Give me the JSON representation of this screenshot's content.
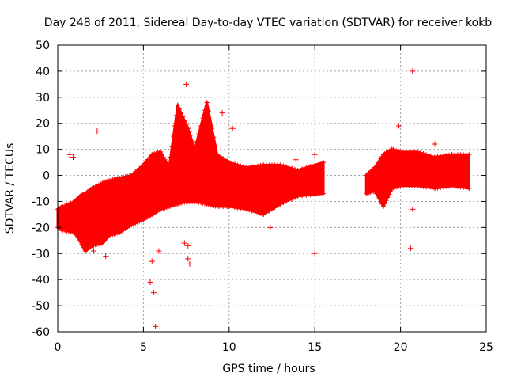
{
  "chart_data": {
    "type": "scatter",
    "title": "Day 248 of 2011, Sidereal Day-to-day VTEC variation (SDTVAR) for receiver kokb",
    "xlabel": "GPS time / hours",
    "ylabel": "SDTVAR / TECUs",
    "xlim": [
      0,
      25
    ],
    "ylim": [
      -60,
      50
    ],
    "x_ticks": [
      0,
      5,
      10,
      15,
      20,
      25
    ],
    "y_ticks": [
      -60,
      -50,
      -40,
      -30,
      -20,
      -10,
      0,
      10,
      20,
      30,
      40,
      50
    ],
    "grid": true,
    "marker": "+",
    "series_color": "#ff0000",
    "bands": [
      {
        "x": [
          0.0,
          0.3
        ],
        "lo": [
          -20,
          -21
        ],
        "hi": [
          -13,
          -12
        ]
      },
      {
        "x": [
          0.3,
          1.0
        ],
        "lo": [
          -21,
          -22
        ],
        "hi": [
          -12,
          -10
        ]
      },
      {
        "x": [
          1.0,
          1.3
        ],
        "lo": [
          -22,
          -25
        ],
        "hi": [
          -10,
          -8
        ]
      },
      {
        "x": [
          1.3,
          1.6
        ],
        "lo": [
          -25,
          -29
        ],
        "hi": [
          -8,
          -7
        ]
      },
      {
        "x": [
          1.6,
          2.0
        ],
        "lo": [
          -29,
          -27
        ],
        "hi": [
          -7,
          -5
        ]
      },
      {
        "x": [
          2.0,
          2.6
        ],
        "lo": [
          -27,
          -26
        ],
        "hi": [
          -5,
          -3
        ]
      },
      {
        "x": [
          2.6,
          3.0
        ],
        "lo": [
          -26,
          -23
        ],
        "hi": [
          -3,
          -2
        ]
      },
      {
        "x": [
          3.0,
          3.6
        ],
        "lo": [
          -23,
          -22
        ],
        "hi": [
          -2,
          -1
        ]
      },
      {
        "x": [
          3.6,
          4.3
        ],
        "lo": [
          -22,
          -19
        ],
        "hi": [
          -1,
          0
        ]
      },
      {
        "x": [
          4.3,
          5.0
        ],
        "lo": [
          -19,
          -17
        ],
        "hi": [
          0,
          4
        ]
      },
      {
        "x": [
          5.0,
          5.5
        ],
        "lo": [
          -17,
          -15
        ],
        "hi": [
          4,
          8
        ]
      },
      {
        "x": [
          5.5,
          6.0
        ],
        "lo": [
          -15,
          -13
        ],
        "hi": [
          8,
          9
        ]
      },
      {
        "x": [
          6.0,
          6.5
        ],
        "lo": [
          -13,
          -12
        ],
        "hi": [
          9,
          3
        ]
      },
      {
        "x": [
          6.5,
          7.0
        ],
        "lo": [
          -12,
          -11
        ],
        "hi": [
          3,
          27
        ]
      },
      {
        "x": [
          7.0,
          7.6
        ],
        "lo": [
          -11,
          -10
        ],
        "hi": [
          27,
          18
        ]
      },
      {
        "x": [
          7.6,
          8.0
        ],
        "lo": [
          -10,
          -10
        ],
        "hi": [
          18,
          10
        ]
      },
      {
        "x": [
          8.0,
          8.7
        ],
        "lo": [
          -10,
          -11
        ],
        "hi": [
          10,
          28
        ]
      },
      {
        "x": [
          8.7,
          9.3
        ],
        "lo": [
          -11,
          -12
        ],
        "hi": [
          28,
          8
        ]
      },
      {
        "x": [
          9.3,
          10.0
        ],
        "lo": [
          -12,
          -12
        ],
        "hi": [
          8,
          5
        ]
      },
      {
        "x": [
          10.0,
          11.0
        ],
        "lo": [
          -12,
          -13
        ],
        "hi": [
          5,
          3
        ]
      },
      {
        "x": [
          11.0,
          12.0
        ],
        "lo": [
          -13,
          -15
        ],
        "hi": [
          3,
          4
        ]
      },
      {
        "x": [
          12.0,
          13.0
        ],
        "lo": [
          -15,
          -11
        ],
        "hi": [
          4,
          4
        ]
      },
      {
        "x": [
          13.0,
          14.0
        ],
        "lo": [
          -11,
          -8
        ],
        "hi": [
          4,
          2
        ]
      },
      {
        "x": [
          14.0,
          15.5
        ],
        "lo": [
          -8,
          -7
        ],
        "hi": [
          2,
          5
        ]
      },
      {
        "x": [
          18.0,
          18.5
        ],
        "lo": [
          -7,
          -6
        ],
        "hi": [
          0,
          3
        ]
      },
      {
        "x": [
          18.5,
          19.0
        ],
        "lo": [
          -6,
          -12
        ],
        "hi": [
          3,
          8
        ]
      },
      {
        "x": [
          19.0,
          19.5
        ],
        "lo": [
          -12,
          -5
        ],
        "hi": [
          8,
          10
        ]
      },
      {
        "x": [
          19.5,
          20.0
        ],
        "lo": [
          -5,
          -4
        ],
        "hi": [
          10,
          9
        ]
      },
      {
        "x": [
          20.0,
          21.0
        ],
        "lo": [
          -4,
          -4
        ],
        "hi": [
          9,
          9
        ]
      },
      {
        "x": [
          21.0,
          22.0
        ],
        "lo": [
          -4,
          -5
        ],
        "hi": [
          9,
          7
        ]
      },
      {
        "x": [
          22.0,
          23.0
        ],
        "lo": [
          -5,
          -4
        ],
        "hi": [
          7,
          8
        ]
      },
      {
        "x": [
          23.0,
          24.0
        ],
        "lo": [
          -4,
          -5
        ],
        "hi": [
          8,
          8
        ]
      }
    ],
    "outliers": [
      {
        "x": 0.7,
        "y": 8
      },
      {
        "x": 0.9,
        "y": 7
      },
      {
        "x": 2.3,
        "y": 17
      },
      {
        "x": 2.1,
        "y": -29
      },
      {
        "x": 2.8,
        "y": -31
      },
      {
        "x": 5.7,
        "y": -58
      },
      {
        "x": 5.6,
        "y": -45
      },
      {
        "x": 5.4,
        "y": -41
      },
      {
        "x": 5.5,
        "y": -33
      },
      {
        "x": 5.9,
        "y": -29
      },
      {
        "x": 7.5,
        "y": 35
      },
      {
        "x": 7.6,
        "y": -32
      },
      {
        "x": 7.7,
        "y": -34
      },
      {
        "x": 7.6,
        "y": -27
      },
      {
        "x": 7.4,
        "y": -26
      },
      {
        "x": 9.6,
        "y": 24
      },
      {
        "x": 10.2,
        "y": 18
      },
      {
        "x": 12.4,
        "y": -20
      },
      {
        "x": 13.9,
        "y": 6
      },
      {
        "x": 15.0,
        "y": 8
      },
      {
        "x": 15.0,
        "y": -30
      },
      {
        "x": 19.9,
        "y": 19
      },
      {
        "x": 20.7,
        "y": 40
      },
      {
        "x": 20.6,
        "y": -28
      },
      {
        "x": 20.7,
        "y": -13
      },
      {
        "x": 22.0,
        "y": 12
      }
    ]
  }
}
